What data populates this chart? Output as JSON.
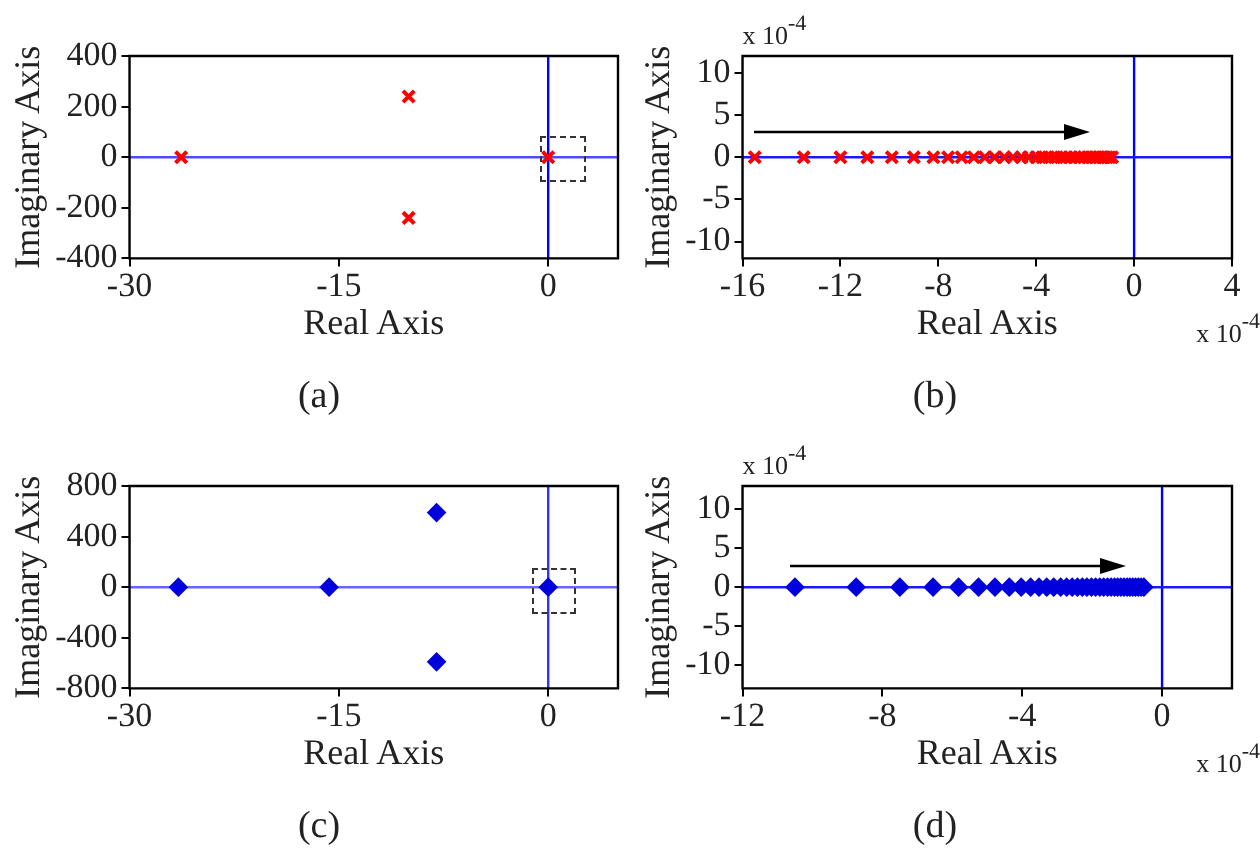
{
  "chart_data": [
    {
      "type": "scatter",
      "title": "(a)",
      "xlabel": "Real Axis",
      "ylabel": "Imaginary Axis",
      "xlim": [
        -30,
        5
      ],
      "xticks": [
        -30,
        -15,
        0
      ],
      "ylim": [
        -400,
        400
      ],
      "yticks": [
        -400,
        -200,
        0,
        200,
        400
      ],
      "grid": false,
      "legend": false,
      "marker": "cross",
      "ref_lines": [
        {
          "axis": "x",
          "value": 0,
          "color": "#0000ff"
        },
        {
          "axis": "y",
          "value": 0,
          "color": "#4d4dff"
        }
      ],
      "series": [
        {
          "color": "#ff0000",
          "x": [
            -26.3,
            -10,
            -10,
            0
          ],
          "values": [
            0,
            240,
            -240,
            0
          ]
        }
      ]
    },
    {
      "type": "scatter",
      "title": "(b)",
      "xlabel": "Real Axis",
      "ylabel": "Imaginary Axis",
      "xlim": [
        -16,
        4
      ],
      "xticks": [
        -16,
        -12,
        -8,
        -4,
        0,
        4
      ],
      "ylim": [
        -12,
        12
      ],
      "yticks": [
        -10,
        -5,
        0,
        5,
        10
      ],
      "grid": false,
      "legend": false,
      "marker": "cross",
      "annotations": [
        "x 10$^{-4}$",
        "x 10$^{-4}$"
      ],
      "ref_lines": [
        {
          "axis": "x",
          "value": 0,
          "color": "#0000ff"
        },
        {
          "axis": "y",
          "value": 0,
          "color": "#1a1aff"
        }
      ],
      "series": [
        {
          "color": "#ff0000",
          "x": [
            -15.5,
            -13.5,
            -12.0,
            -10.9,
            -9.9,
            -9.0,
            -8.2,
            -7.6,
            -7.05,
            -6.55,
            -6.1,
            -5.7,
            -5.3,
            -4.95,
            -4.6,
            -4.3,
            -4.0,
            -3.75,
            -3.5,
            -3.25,
            -3.0,
            -2.8,
            -2.6,
            -2.4,
            -2.2,
            -2.05,
            -1.9,
            -1.75,
            -1.6,
            -1.45,
            -1.3,
            -1.2,
            -1.1,
            -1.0,
            -0.9
          ],
          "values": [
            0,
            0,
            0,
            0,
            0,
            0,
            0,
            0,
            0,
            0,
            0,
            0,
            0,
            0,
            0,
            0,
            0,
            0,
            0,
            0,
            0,
            0,
            0,
            0,
            0,
            0,
            0,
            0,
            0,
            0,
            0,
            0,
            0,
            0,
            0
          ]
        }
      ]
    },
    {
      "type": "scatter",
      "title": "(c)",
      "xlabel": "Real Axis",
      "ylabel": "Imaginary Axis",
      "xlim": [
        -30,
        5
      ],
      "xticks": [
        -30,
        -15,
        0
      ],
      "ylim": [
        -800,
        800
      ],
      "yticks": [
        -800,
        -400,
        0,
        400,
        800
      ],
      "grid": false,
      "legend": false,
      "marker": "diamond",
      "ref_lines": [
        {
          "axis": "x",
          "value": 0,
          "color": "#3333ff"
        },
        {
          "axis": "y",
          "value": 0,
          "color": "#6666ff"
        }
      ],
      "series": [
        {
          "color": "#0000dd",
          "x": [
            -26.5,
            -15.7,
            -8.0,
            -8.0,
            0
          ],
          "values": [
            0,
            0,
            590,
            -590,
            0
          ]
        }
      ]
    },
    {
      "type": "scatter",
      "title": "(d)",
      "xlabel": "Real Axis",
      "ylabel": "Imaginary Axis",
      "xlim": [
        -12,
        2
      ],
      "xticks": [
        -12,
        -8,
        -4,
        0
      ],
      "ylim": [
        -13,
        13
      ],
      "yticks": [
        -10,
        -5,
        0,
        5,
        10
      ],
      "grid": false,
      "legend": false,
      "marker": "diamond",
      "annotations": [
        "x 10$^{-4}$",
        "x 10$^{-4}$"
      ],
      "ref_lines": [
        {
          "axis": "x",
          "value": 0,
          "color": "#0000ff"
        },
        {
          "axis": "y",
          "value": 0,
          "color": "#1a1aff"
        }
      ],
      "series": [
        {
          "color": "#0000dd",
          "x": [
            -10.5,
            -8.75,
            -7.5,
            -6.55,
            -5.82,
            -5.25,
            -4.78,
            -4.37,
            -4.03,
            -3.76,
            -3.52,
            -3.3,
            -3.1,
            -2.9,
            -2.73,
            -2.57,
            -2.42,
            -2.28,
            -2.15,
            -2.02,
            -1.9,
            -1.78,
            -1.67,
            -1.56,
            -1.46,
            -1.36,
            -1.27,
            -1.18,
            -1.09,
            -1.0,
            -0.92,
            -0.84,
            -0.76,
            -0.68,
            -0.6,
            -0.52
          ],
          "values": [
            0,
            0,
            0,
            0,
            0,
            0,
            0,
            0,
            0,
            0,
            0,
            0,
            0,
            0,
            0,
            0,
            0,
            0,
            0,
            0,
            0,
            0,
            0,
            0,
            0,
            0,
            0,
            0,
            0,
            0,
            0,
            0,
            0,
            0,
            0,
            0
          ]
        }
      ]
    }
  ]
}
